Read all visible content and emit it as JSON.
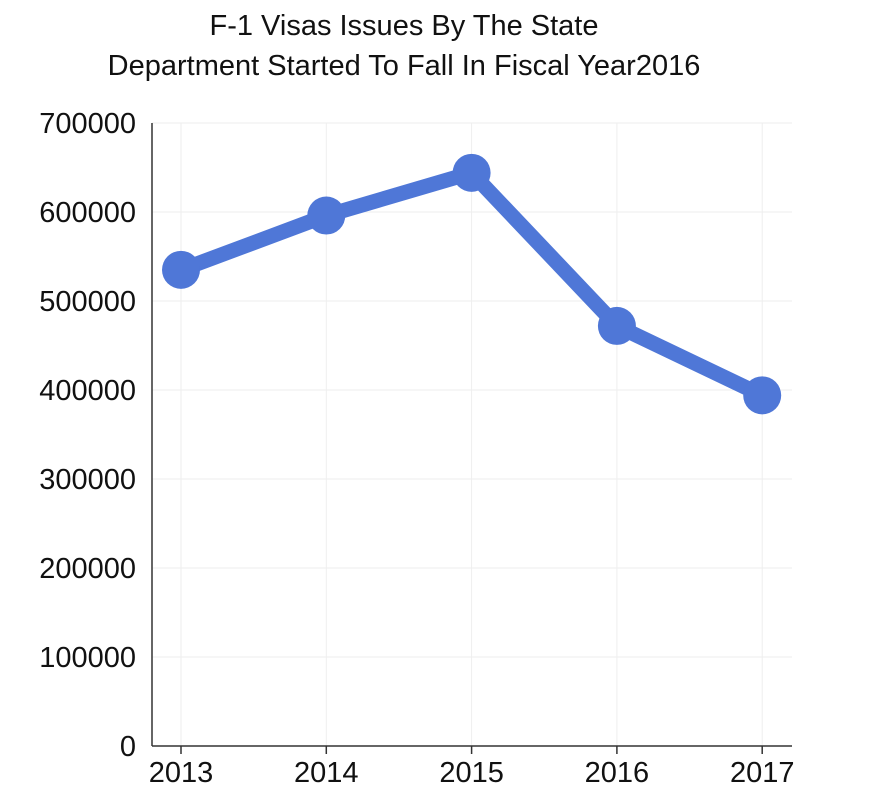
{
  "chart_data": {
    "type": "line",
    "title_lines": [
      "F-1 Visas Issues By The State",
      "Department Started To Fall In Fiscal Year2016"
    ],
    "xlabel": "",
    "ylabel": "",
    "categories": [
      "2013",
      "2014",
      "2015",
      "2016",
      "2017"
    ],
    "series": [
      {
        "values": [
          535000,
          596000,
          644000,
          472000,
          394000
        ]
      }
    ],
    "ylim": [
      0,
      700000
    ],
    "yticks": [
      0,
      100000,
      200000,
      300000,
      400000,
      500000,
      600000,
      700000
    ],
    "ytick_labels": [
      "0",
      "100000",
      "200000",
      "300000",
      "400000",
      "500000",
      "600000",
      "700000"
    ],
    "grid": true,
    "legend": "none",
    "colors": {
      "line": "#4f77d7",
      "marker": "#4f77d7",
      "axis": "#333333",
      "grid": "#eeeeee",
      "text": "#111111"
    }
  }
}
